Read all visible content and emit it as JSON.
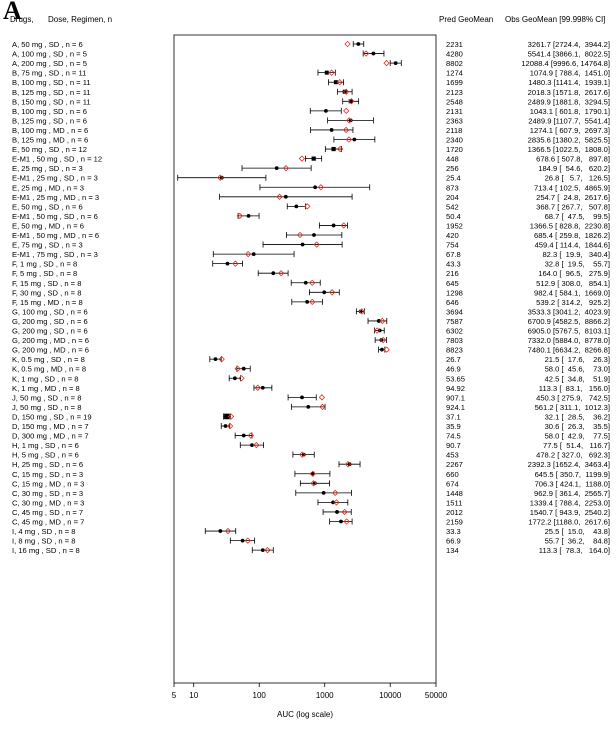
{
  "panel_label": "A",
  "headers": {
    "drugs": "Drugs,",
    "dose": "Dose, Regimen, n",
    "pred": "Pred GeoMean",
    "obs": "Obs GeoMean [99.998% CI]"
  },
  "chart_data": {
    "type": "forest",
    "xscale": "log",
    "xlabel": "AUC (log scale)",
    "xlim": [
      5,
      50000
    ],
    "xticks": [
      5,
      10,
      100,
      1000,
      10000,
      50000
    ],
    "xtick_labels": [
      "5",
      "10",
      "100",
      "1000",
      "10000",
      "50000"
    ],
    "legend": {
      "observed": "filled black circle",
      "predicted": "open red diamond"
    },
    "rows": [
      {
        "label": "A,  50 mg , SD , n = 6",
        "pred": 2231,
        "pred_text": "2231",
        "obs": 3261.7,
        "lo": 2724.4,
        "hi": 3944.2,
        "obs_text": "3261.7 [2724.4,  3944.2]"
      },
      {
        "label": "A,  100 mg , SD , n = 5",
        "pred": 4280,
        "pred_text": "4280",
        "obs": 5541.4,
        "lo": 3866.1,
        "hi": 8022.5,
        "obs_text": "5541.4 [3866.1,  8022.5]"
      },
      {
        "label": "A,  200 mg , SD , n = 5",
        "pred": 8802,
        "pred_text": "8802",
        "obs": 12088.4,
        "lo": 9996.6,
        "hi": 14764.8,
        "obs_text": "12088.4 [9996.6, 14764.8]"
      },
      {
        "label": "B,  75 mg , SD , n = 11",
        "pred": 1274,
        "pred_text": "1274",
        "obs": 1074.9,
        "lo": 788.4,
        "hi": 1451.0,
        "obs_text": "1074.9 [ 788.4,  1451.0]"
      },
      {
        "label": "B,  100 mg , SD , n = 11",
        "pred": 1699,
        "pred_text": "1699",
        "obs": 1480.3,
        "lo": 1141.4,
        "hi": 1939.1,
        "obs_text": "1480.3 [1141.4,  1939.1]"
      },
      {
        "label": "B,  125 mg , SD , n = 11",
        "pred": 2123,
        "pred_text": "2123",
        "obs": 2018.3,
        "lo": 1571.8,
        "hi": 2617.6,
        "obs_text": "2018.3 [1571.8,  2617.6]"
      },
      {
        "label": "B,  150 mg , SD , n = 11",
        "pred": 2548,
        "pred_text": "2548",
        "obs": 2489.9,
        "lo": 1881.8,
        "hi": 3294.5,
        "obs_text": "2489.9 [1881.8,  3294.5]"
      },
      {
        "label": "B,  100 mg , SD , n = 6",
        "pred": 2131,
        "pred_text": "2131",
        "obs": 1043.1,
        "lo": 601.8,
        "hi": 1790.1,
        "obs_text": "1043.1 [ 601.8,  1790.1]"
      },
      {
        "label": "B,  125 mg , SD , n = 6",
        "pred": 2363,
        "pred_text": "2363",
        "obs": 2489.9,
        "lo": 1107.7,
        "hi": 5541.4,
        "obs_text": "2489.9 [1107.7,  5541.4]"
      },
      {
        "label": "B,  100 mg , MD , n = 6",
        "pred": 2118,
        "pred_text": "2118",
        "obs": 1274.1,
        "lo": 607.9,
        "hi": 2697.3,
        "obs_text": "1274.1 [ 607.9,  2697.3]"
      },
      {
        "label": "B,  125 mg , MD , n = 6",
        "pred": 2340,
        "pred_text": "2340",
        "obs": 2835.6,
        "lo": 1380.2,
        "hi": 5825.5,
        "obs_text": "2835.6 [1380.2,  5825.5]"
      },
      {
        "label": "E,  50 mg , SD , n = 12",
        "pred": 1720,
        "pred_text": "1720",
        "obs": 1366.5,
        "lo": 1022.5,
        "hi": 1808.0,
        "obs_text": "1366.5 [1022.5,  1808.0]"
      },
      {
        "label": "E-M1 ,  50 mg , SD , n = 12",
        "pred": 448,
        "pred_text": "448",
        "obs": 678.6,
        "lo": 507.8,
        "hi": 897.8,
        "obs_text": "678.6 [ 507.8,   897.8]"
      },
      {
        "label": "E,  25 mg , SD , n = 3",
        "pred": 256,
        "pred_text": "256",
        "obs": 184.9,
        "lo": 54.6,
        "hi": 620.2,
        "obs_text": "184.9 [  54.6,   620.2]"
      },
      {
        "label": "E-M1 ,  25 mg , SD , n = 3",
        "pred": 25.4,
        "pred_text": "25.4",
        "obs": 26.8,
        "lo": 5.7,
        "hi": 126.5,
        "obs_text": "26.8 [   5.7,   126.5]"
      },
      {
        "label": "E,  25 mg , MD , n = 3",
        "pred": 873,
        "pred_text": "873",
        "obs": 713.4,
        "lo": 102.5,
        "hi": 4865.9,
        "obs_text": "713.4 [ 102.5,  4865.9]"
      },
      {
        "label": "E-M1 ,  25 mg , MD , n = 3",
        "pred": 204,
        "pred_text": "204",
        "obs": 254.7,
        "lo": 24.8,
        "hi": 2617.6,
        "obs_text": "254.7 [  24.8,  2617.6]"
      },
      {
        "label": "E,  50 mg , SD , n = 6",
        "pred": 542,
        "pred_text": "542",
        "obs": 368.7,
        "lo": 267.7,
        "hi": 507.8,
        "obs_text": "368.7 [ 267.7,   507.8]"
      },
      {
        "label": "E-M1 ,  50 mg , SD , n = 6",
        "pred": 50.4,
        "pred_text": "50.4",
        "obs": 68.7,
        "lo": 47.5,
        "hi": 99.5,
        "obs_text": "68.7 [  47.5,    99.5]"
      },
      {
        "label": "E,  50 mg , MD , n = 6",
        "pred": 1952,
        "pred_text": "1952",
        "obs": 1366.5,
        "lo": 828.8,
        "hi": 2230.8,
        "obs_text": "1366.5 [ 828.8,  2230.8]"
      },
      {
        "label": "E-M1 ,  50 mg , MD , n = 6",
        "pred": 420,
        "pred_text": "420",
        "obs": 685.4,
        "lo": 259.8,
        "hi": 1826.2,
        "obs_text": "685.4 [ 259.8,  1826.2]"
      },
      {
        "label": "E,  75 mg , SD , n = 3",
        "pred": 754,
        "pred_text": "754",
        "obs": 459.4,
        "lo": 114.4,
        "hi": 1844.6,
        "obs_text": "459.4 [ 114.4,  1844.6]"
      },
      {
        "label": "E-M1 ,  75 mg , SD , n = 3",
        "pred": 67.8,
        "pred_text": "67.8",
        "obs": 82.3,
        "lo": 19.9,
        "hi": 340.4,
        "obs_text": "82.3 [  19.9,   340.4]"
      },
      {
        "label": "F,  1 mg , SD , n = 8",
        "pred": 43.3,
        "pred_text": "43.3",
        "obs": 32.8,
        "lo": 19.5,
        "hi": 55.7,
        "obs_text": "32.8 [  19.5,    55.7]"
      },
      {
        "label": "F,  5 mg , SD , n = 8",
        "pred": 216,
        "pred_text": "216",
        "obs": 164.0,
        "lo": 96.5,
        "hi": 275.9,
        "obs_text": "164.0 [  96.5,   275.9]"
      },
      {
        "label": "F,  15 mg , SD , n = 8",
        "pred": 645,
        "pred_text": "645",
        "obs": 512.9,
        "lo": 308.0,
        "hi": 854.1,
        "obs_text": "512.9 [ 308.0,   854.1]"
      },
      {
        "label": "F,  30 mg , SD , n = 8",
        "pred": 1298,
        "pred_text": "1298",
        "obs": 982.4,
        "lo": 584.1,
        "hi": 1669.0,
        "obs_text": "982.4 [ 584.1,  1669.0]"
      },
      {
        "label": "F,  15 mg , MD , n = 8",
        "pred": 646,
        "pred_text": "646",
        "obs": 539.2,
        "lo": 314.2,
        "hi": 925.2,
        "obs_text": "539.2 [ 314.2,   925.2]"
      },
      {
        "label": "G,  100 mg , SD , n = 6",
        "pred": 3694,
        "pred_text": "3694",
        "obs": 3533.3,
        "lo": 3041.2,
        "hi": 4023.9,
        "obs_text": "3533.3 [3041.2,  4023.9]"
      },
      {
        "label": "G,  200 mg , SD , n = 6",
        "pred": 7587,
        "pred_text": "7587",
        "obs": 6700.9,
        "lo": 4582.5,
        "hi": 8866.2,
        "obs_text": "6700.9 [4582.5,  8866.2]"
      },
      {
        "label": "G,  200 mg , SD , n = 6",
        "pred": 6302,
        "pred_text": "6302",
        "obs": 6905.0,
        "lo": 5767.5,
        "hi": 8103.1,
        "obs_text": "6905.0 [5767.5,  8103.1]"
      },
      {
        "label": "G,  200 mg , MD , n = 6",
        "pred": 7803,
        "pred_text": "7803",
        "obs": 7332.0,
        "lo": 5884.0,
        "hi": 8778.0,
        "obs_text": "7332.0 [5884.0,  8778.0]"
      },
      {
        "label": "G,  200 mg , MD , n = 6",
        "pred": 8823,
        "pred_text": "8823",
        "obs": 7480.1,
        "lo": 6634.2,
        "hi": 8266.8,
        "obs_text": "7480.1 [6634.2,  8266.8]"
      },
      {
        "label": "K,  0.5 mg , SD , n = 8",
        "pred": 26.7,
        "pred_text": "26.7",
        "obs": 21.5,
        "lo": 17.6,
        "hi": 26.3,
        "obs_text": "21.5 [  17.6,    26.3]"
      },
      {
        "label": "K,  0.5 mg , MD , n = 8",
        "pred": 46.9,
        "pred_text": "46.9",
        "obs": 58.0,
        "lo": 45.6,
        "hi": 73.0,
        "obs_text": "58.0 [  45.6,    73.0]"
      },
      {
        "label": "K,  1 mg , SD , n = 8",
        "pred": 53.65,
        "pred_text": "53.65",
        "obs": 42.5,
        "lo": 34.8,
        "hi": 51.9,
        "obs_text": "42.5 [  34.8,    51.9]"
      },
      {
        "label": "K,  1 mg , MD , n = 8",
        "pred": 94.92,
        "pred_text": "94.92",
        "obs": 113.3,
        "lo": 83.1,
        "hi": 156.0,
        "obs_text": "113.3 [  83.1,   156.0]"
      },
      {
        "label": "J,  50 mg , SD , n = 8",
        "pred": 907.1,
        "pred_text": "907.1",
        "obs": 450.3,
        "lo": 275.9,
        "hi": 742.5,
        "obs_text": "450.3 [ 275.9,   742.5]"
      },
      {
        "label": "J,  50 mg , SD , n = 8",
        "pred": 924.1,
        "pred_text": "924.1",
        "obs": 561.2,
        "lo": 311.1,
        "hi": 1012.3,
        "obs_text": "561.2 [ 311.1,  1012.3]"
      },
      {
        "label": "D,  150 mg , SD , n = 19",
        "pred": 37.1,
        "pred_text": "37.1",
        "obs": 32.1,
        "lo": 28.5,
        "hi": 36.2,
        "obs_text": "32.1 [  28.5,    36.2]"
      },
      {
        "label": "D,  150 mg , MD , n = 7",
        "pred": 35.9,
        "pred_text": "35.9",
        "obs": 30.6,
        "lo": 26.3,
        "hi": 35.5,
        "obs_text": "30.6 [  26.3,    35.5]"
      },
      {
        "label": "D,  300 mg , MD , n = 7",
        "pred": 74.5,
        "pred_text": "74.5",
        "obs": 58.0,
        "lo": 42.9,
        "hi": 77.5,
        "obs_text": "58.0 [  42.9,    77.5]"
      },
      {
        "label": "H,  1 mg , SD , n = 6",
        "pred": 90.7,
        "pred_text": "90.7",
        "obs": 77.5,
        "lo": 51.4,
        "hi": 116.7,
        "obs_text": "77.5 [  51.4,   116.7]"
      },
      {
        "label": "H,  5 mg , SD , n = 6",
        "pred": 453,
        "pred_text": "453",
        "obs": 478.2,
        "lo": 327.0,
        "hi": 692.3,
        "obs_text": "478.2 [ 327.0,   692.3]"
      },
      {
        "label": "H,  25 mg , SD , n = 6",
        "pred": 2267,
        "pred_text": "2267",
        "obs": 2392.3,
        "lo": 1652.4,
        "hi": 3463.4,
        "obs_text": "2392.3 [1652.4,  3463.4]"
      },
      {
        "label": "C,  15 mg , SD , n = 3",
        "pred": 660,
        "pred_text": "660",
        "obs": 645.5,
        "lo": 350.7,
        "hi": 1199.9,
        "obs_text": "645.5 [ 350.7,  1199.9]"
      },
      {
        "label": "C,  15 mg , MD , n = 3",
        "pred": 674,
        "pred_text": "674",
        "obs": 706.3,
        "lo": 424.1,
        "hi": 1188.0,
        "obs_text": "706.3 [ 424.1,  1188.0]"
      },
      {
        "label": "C,  30 mg , SD , n = 3",
        "pred": 1448,
        "pred_text": "1448",
        "obs": 962.9,
        "lo": 361.4,
        "hi": 2565.7,
        "obs_text": "962.9 [ 361.4,  2565.7]"
      },
      {
        "label": "C,  30 mg , MD , n = 3",
        "pred": 1511,
        "pred_text": "1511",
        "obs": 1339.4,
        "lo": 788.4,
        "hi": 2253.0,
        "obs_text": "1339.4 [ 788.4,  2253.0]"
      },
      {
        "label": "C,  45 mg , SD , n = 7",
        "pred": 2012,
        "pred_text": "2012",
        "obs": 1540.7,
        "lo": 943.9,
        "hi": 2540.2,
        "obs_text": "1540.7 [ 943.9,  2540.2]"
      },
      {
        "label": "C,  45 mg , MD , n = 7",
        "pred": 2159,
        "pred_text": "2159",
        "obs": 1772.2,
        "lo": 1188.0,
        "hi": 2617.6,
        "obs_text": "1772.2 [1188.0,  2617.6]"
      },
      {
        "label": "I,  4 mg , SD , n = 8",
        "pred": 33.3,
        "pred_text": "33.3",
        "obs": 25.5,
        "lo": 15.0,
        "hi": 43.8,
        "obs_text": "25.5 [  15.0,    43.8]"
      },
      {
        "label": "I,  8 mg , SD , n = 8",
        "pred": 66.9,
        "pred_text": "66.9",
        "obs": 55.7,
        "lo": 36.2,
        "hi": 84.8,
        "obs_text": "55.7 [  36.2,    84.8]"
      },
      {
        "label": "I,  16 mg , SD , n = 8",
        "pred": 134,
        "pred_text": "134",
        "obs": 113.3,
        "lo": 78.3,
        "hi": 164.0,
        "obs_text": "113.3 [  78.3,   164.0]"
      }
    ]
  }
}
